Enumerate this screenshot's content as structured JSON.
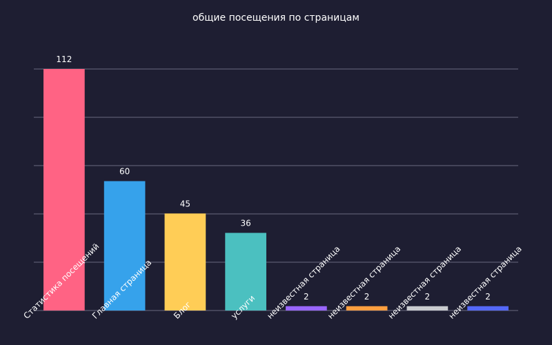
{
  "chart_data": {
    "type": "bar",
    "title": "общие посещения по страницам",
    "categories": [
      "Статистика посещений",
      "Главная страница",
      "Блог",
      "услуги",
      "неизвестная страница",
      "неизвестная страница",
      "неизвестная страница",
      "неизвестная страница"
    ],
    "values": [
      112,
      60,
      45,
      36,
      2,
      2,
      2,
      2
    ],
    "colors": [
      "#ff6384",
      "#36a2eb",
      "#ffcd56",
      "#4bc0c0",
      "#9966ff",
      "#ff9f40",
      "#c9cbcf",
      "#5468f7"
    ],
    "ylim": [
      0,
      112
    ],
    "grid": true,
    "y_tick_labels_visible": false,
    "data_labels": true,
    "x_label_rotation_deg": -45,
    "background": "#1e1e32",
    "grid_color": "#6b6b80"
  }
}
